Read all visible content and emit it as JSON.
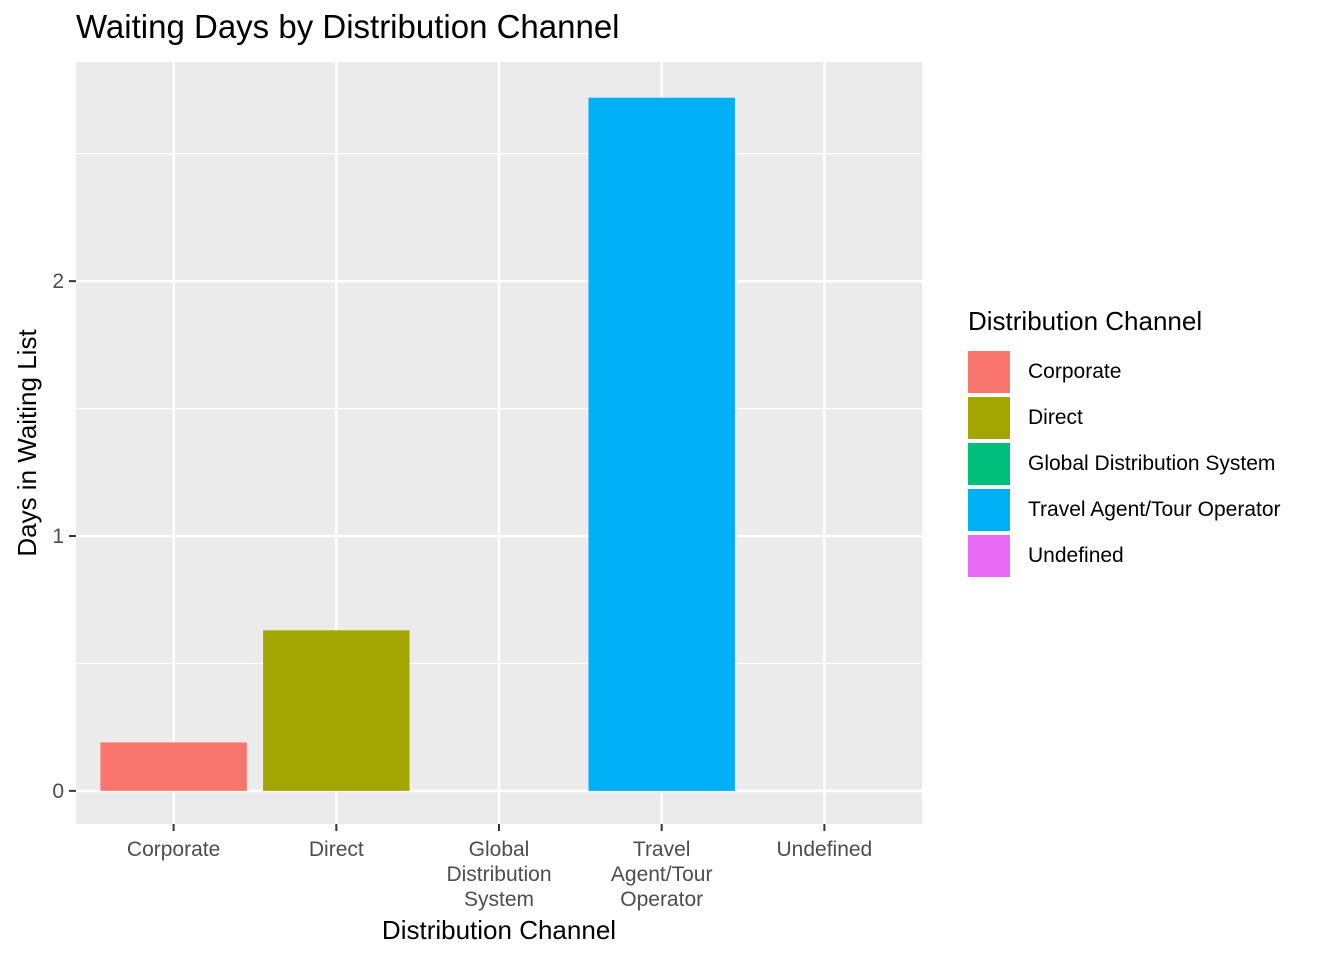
{
  "chart_data": {
    "type": "bar",
    "title": "Waiting Days by Distribution Channel",
    "xlabel": "Distribution Channel",
    "ylabel": "Days in Waiting List",
    "categories": [
      "Corporate",
      "Direct",
      "Global Distribution System",
      "Travel Agent/Tour Operator",
      "Undefined"
    ],
    "category_tick_lines": [
      [
        "Corporate"
      ],
      [
        "Direct"
      ],
      [
        "Global",
        "Distribution",
        "System"
      ],
      [
        "Travel",
        "Agent/Tour",
        "Operator"
      ],
      [
        "Undefined"
      ]
    ],
    "values": [
      0.19,
      0.63,
      0.0,
      2.72,
      0.0
    ],
    "colors": [
      "#F8766D",
      "#A3A500",
      "#00BF7D",
      "#00B0F6",
      "#E76BF3"
    ],
    "ylim": [
      -0.13,
      2.86
    ],
    "yticks": [
      0,
      1,
      2
    ],
    "grid": true,
    "legend": {
      "title": "Distribution Channel",
      "position": "right",
      "entries": [
        "Corporate",
        "Direct",
        "Global Distribution System",
        "Travel Agent/Tour Operator",
        "Undefined"
      ]
    }
  }
}
